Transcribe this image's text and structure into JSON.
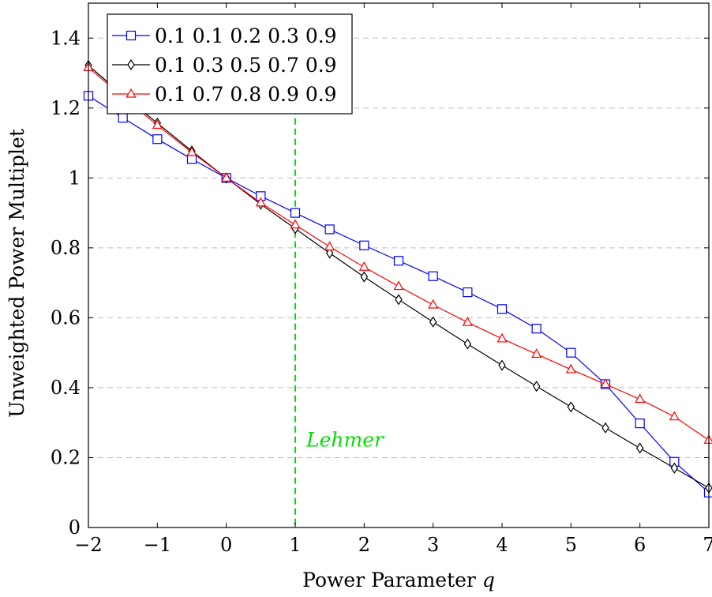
{
  "chart_data": {
    "type": "line",
    "xlabel": "Power Parameter ",
    "xlabel_var": "q",
    "ylabel": "Unweighted Power Multiplet",
    "xlim": [
      -2,
      7
    ],
    "ylim": [
      0,
      1.5
    ],
    "xticks": [
      "−2",
      "−1",
      "0",
      "1",
      "2",
      "3",
      "4",
      "5",
      "6",
      "7"
    ],
    "xtick_values": [
      -2,
      -1,
      0,
      1,
      2,
      3,
      4,
      5,
      6,
      7
    ],
    "yticks": [
      "0",
      "0.2",
      "0.4",
      "0.6",
      "0.8",
      "1",
      "1.2",
      "1.4"
    ],
    "ytick_values": [
      0,
      0.2,
      0.4,
      0.6,
      0.8,
      1.0,
      1.2,
      1.4
    ],
    "grid": "horizontal dashed",
    "legend_position": "top-left",
    "x": [
      -2,
      -1.5,
      -1,
      -0.5,
      0,
      0.5,
      1,
      1.5,
      2,
      2.5,
      3,
      3.5,
      4,
      4.5,
      5,
      5.5,
      6,
      6.5,
      7
    ],
    "series": [
      {
        "name": "0.1 0.1 0.2 0.3 0.9",
        "color": "#0000ff",
        "marker": "square",
        "values": [
          1.235,
          1.172,
          1.111,
          1.054,
          1.0,
          0.948,
          0.9,
          0.853,
          0.807,
          0.763,
          0.719,
          0.673,
          0.625,
          0.569,
          0.5,
          0.41,
          0.298,
          0.188,
          0.1
        ]
      },
      {
        "name": "0.1 0.3 0.5 0.7 0.9",
        "color": "#000000",
        "marker": "diamond",
        "values": [
          1.322,
          1.237,
          1.157,
          1.077,
          1.0,
          0.925,
          0.855,
          0.785,
          0.717,
          0.652,
          0.588,
          0.525,
          0.464,
          0.404,
          0.345,
          0.285,
          0.227,
          0.17,
          0.113
        ]
      },
      {
        "name": "0.1 0.7 0.8 0.9 0.9",
        "color": "#ff0000",
        "marker": "triangle",
        "values": [
          1.316,
          1.232,
          1.151,
          1.073,
          1.0,
          0.929,
          0.866,
          0.803,
          0.745,
          0.69,
          0.637,
          0.587,
          0.54,
          0.496,
          0.452,
          0.41,
          0.367,
          0.317,
          0.25
        ]
      }
    ],
    "annotation": {
      "text": "Lehmer",
      "color": "#00e000",
      "vline_x": 1,
      "label_y": 0.25
    }
  }
}
